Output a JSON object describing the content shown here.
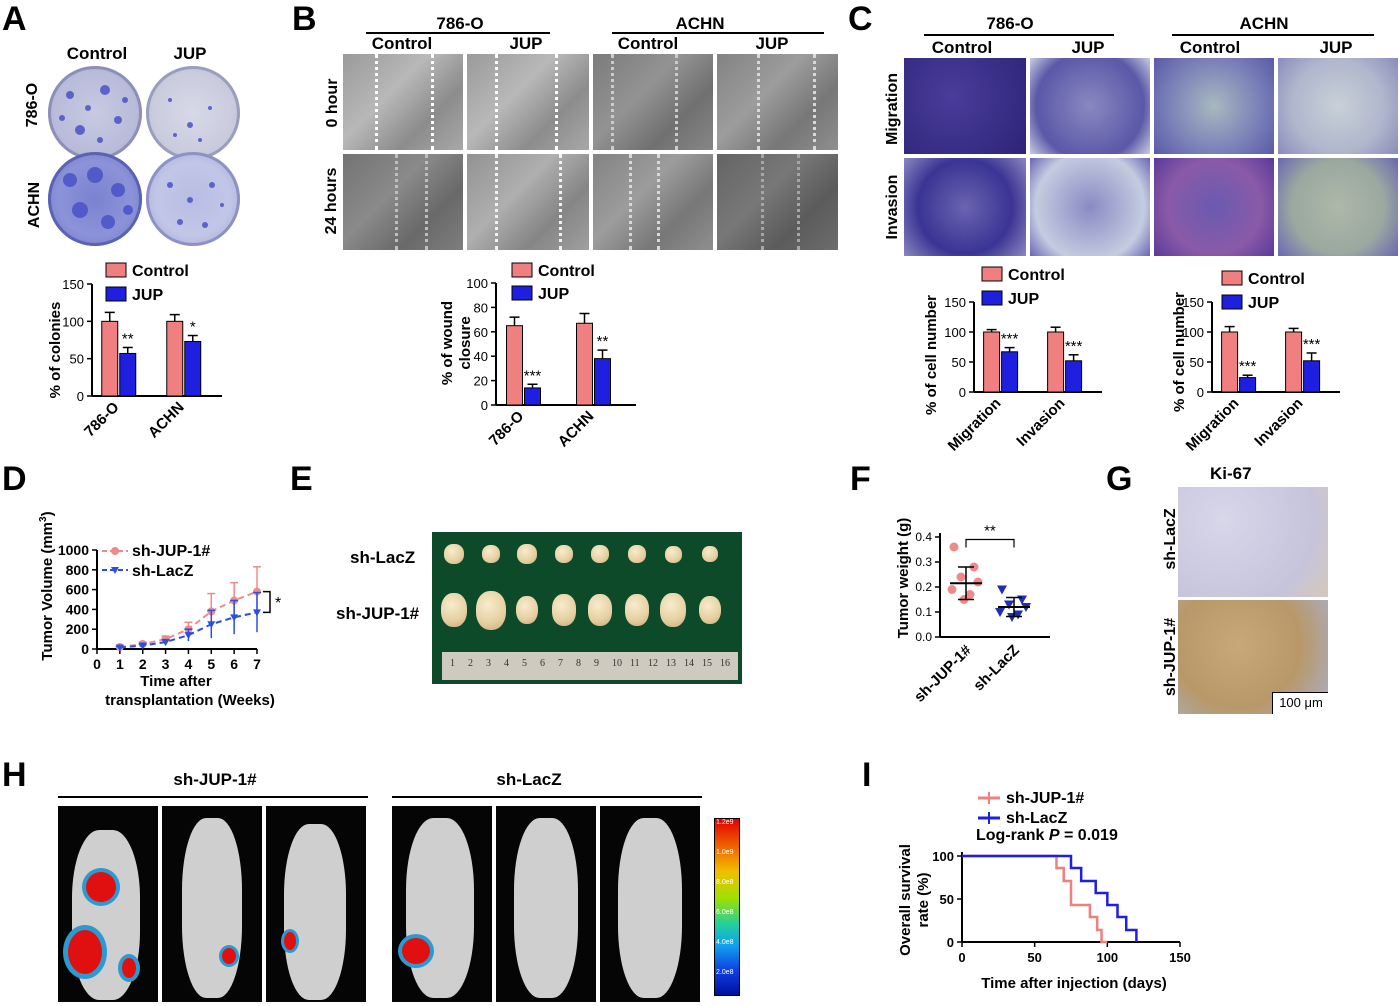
{
  "panels": {
    "A": {
      "label": "A",
      "col_headers": [
        "Control",
        "JUP"
      ],
      "row_labels": [
        "786-O",
        "ACHN"
      ],
      "legend": [
        "Control",
        "JUP"
      ],
      "ylabel": "% of colonies",
      "yticks": [
        "0",
        "50",
        "100",
        "150"
      ],
      "categories": [
        "786-O",
        "ACHN"
      ],
      "sig": [
        "**",
        "*"
      ]
    },
    "B": {
      "label": "B",
      "group_headers": [
        "786-O",
        "ACHN"
      ],
      "col_headers": [
        "Control",
        "JUP",
        "Control",
        "JUP"
      ],
      "row_labels": [
        "0 hour",
        "24 hours"
      ],
      "legend": [
        "Control",
        "JUP"
      ],
      "ylabel_lines": [
        "% of wound",
        "closure"
      ],
      "yticks": [
        "0",
        "20",
        "40",
        "60",
        "80",
        "100"
      ],
      "categories": [
        "786-O",
        "ACHN"
      ],
      "sig": [
        "***",
        "**"
      ]
    },
    "C": {
      "label": "C",
      "group_headers": [
        "786-O",
        "ACHN"
      ],
      "col_headers": [
        "Control",
        "JUP",
        "Control",
        "JUP"
      ],
      "row_labels": [
        "Migration",
        "Invasion"
      ],
      "legend": [
        "Control",
        "JUP"
      ],
      "ylabel": "% of cell number",
      "yticks": [
        "0",
        "50",
        "100",
        "150"
      ],
      "categories": [
        "Migration",
        "Invasion"
      ],
      "sig_left": [
        "***",
        "***"
      ],
      "sig_right": [
        "***",
        "***"
      ]
    },
    "D": {
      "label": "D",
      "ylabel": "Tumor Volume (mm",
      "ylabel_sup": "3",
      "ylabel_end": ")",
      "xlabel_lines": [
        "Time after",
        "transplantation (Weeks)"
      ],
      "yticks": [
        "0",
        "200",
        "400",
        "600",
        "800",
        "1000"
      ],
      "xticks": [
        "0",
        "1",
        "2",
        "3",
        "4",
        "5",
        "6",
        "7"
      ],
      "legend": [
        "sh-JUP-1#",
        "sh-LacZ"
      ],
      "sig": "*"
    },
    "E": {
      "label": "E",
      "row_labels": [
        "sh-LacZ",
        "sh-JUP-1#"
      ],
      "ruler_ticks": [
        "1",
        "2",
        "3",
        "4",
        "5",
        "6",
        "7",
        "8",
        "9",
        "10",
        "11",
        "12",
        "13",
        "14",
        "15",
        "16"
      ]
    },
    "F": {
      "label": "F",
      "ylabel": "Tumor weight (g)",
      "yticks": [
        "0.0",
        "0.1",
        "0.2",
        "0.3",
        "0.4"
      ],
      "categories": [
        "sh-JUP-1#",
        "sh-LacZ"
      ],
      "sig": "**"
    },
    "G": {
      "label": "G",
      "title": "Ki-67",
      "row_labels": [
        "sh-LacZ",
        "sh-JUP-1#"
      ],
      "scale_bar": "100 μm"
    },
    "H": {
      "label": "H",
      "group_headers": [
        "sh-JUP-1#",
        "sh-LacZ"
      ],
      "colorbar_ticks": [
        "1.2e9",
        "1.0e9",
        "8.0e8",
        "6.0e8",
        "4.0e8",
        "2.0e8"
      ]
    },
    "I": {
      "label": "I",
      "legend": [
        "sh-JUP-1#",
        "sh-LacZ"
      ],
      "logrank_prefix": "Log-rank ",
      "logrank_p": "P",
      "logrank_value": " = 0.019",
      "ylabel_lines": [
        "Overall survival",
        "rate (%)"
      ],
      "xlabel": "Time after injection (days)",
      "yticks": [
        "0",
        "50",
        "100"
      ],
      "xticks": [
        "0",
        "50",
        "100",
        "150"
      ]
    }
  },
  "colors": {
    "control": "#f07f7f",
    "jup": "#1f1fe0",
    "pink": "#f08a8a",
    "navy": "#1f2fb0",
    "tumor_bg": "#0d4a2a"
  },
  "chart_data": [
    {
      "panel": "A",
      "type": "bar",
      "categories": [
        "786-O",
        "ACHN"
      ],
      "series": [
        {
          "name": "Control",
          "values": [
            100,
            100
          ],
          "errors": [
            12,
            9
          ]
        },
        {
          "name": "JUP",
          "values": [
            57,
            73
          ],
          "errors": [
            8,
            8
          ]
        }
      ],
      "ylabel": "% of colonies",
      "ylim": [
        0,
        150
      ]
    },
    {
      "panel": "B",
      "type": "bar",
      "categories": [
        "786-O",
        "ACHN"
      ],
      "series": [
        {
          "name": "Control",
          "values": [
            65,
            67
          ],
          "errors": [
            7,
            8
          ]
        },
        {
          "name": "JUP",
          "values": [
            14,
            38
          ],
          "errors": [
            3,
            7
          ]
        }
      ],
      "ylabel": "% of wound closure",
      "ylim": [
        0,
        100
      ]
    },
    {
      "panel": "C-786-O",
      "type": "bar",
      "categories": [
        "Migration",
        "Invasion"
      ],
      "series": [
        {
          "name": "Control",
          "values": [
            100,
            100
          ],
          "errors": [
            4,
            8
          ]
        },
        {
          "name": "JUP",
          "values": [
            67,
            52
          ],
          "errors": [
            7,
            10
          ]
        }
      ],
      "ylabel": "% of cell number",
      "ylim": [
        0,
        150
      ]
    },
    {
      "panel": "C-ACHN",
      "type": "bar",
      "categories": [
        "Migration",
        "Invasion"
      ],
      "series": [
        {
          "name": "Control",
          "values": [
            100,
            100
          ],
          "errors": [
            9,
            6
          ]
        },
        {
          "name": "JUP",
          "values": [
            24,
            52
          ],
          "errors": [
            4,
            13
          ]
        }
      ],
      "ylabel": "% of cell number",
      "ylim": [
        0,
        150
      ]
    },
    {
      "panel": "D",
      "type": "line",
      "x": [
        1,
        2,
        3,
        4,
        5,
        6,
        7
      ],
      "series": [
        {
          "name": "sh-JUP-1#",
          "values": [
            20,
            50,
            100,
            200,
            380,
            490,
            580
          ],
          "errors": [
            10,
            20,
            30,
            70,
            180,
            180,
            250
          ]
        },
        {
          "name": "sh-LacZ",
          "values": [
            15,
            35,
            70,
            140,
            250,
            320,
            370
          ],
          "errors": [
            10,
            15,
            25,
            60,
            140,
            170,
            200
          ]
        }
      ],
      "ylabel": "Tumor Volume (mm3)",
      "xlabel": "Time after transplantation (Weeks)",
      "xlim": [
        0,
        7
      ],
      "ylim": [
        0,
        1000
      ]
    },
    {
      "panel": "F",
      "type": "scatter",
      "categories": [
        "sh-JUP-1#",
        "sh-LacZ"
      ],
      "series": [
        {
          "name": "sh-JUP-1#",
          "values": [
            0.36,
            0.28,
            0.24,
            0.22,
            0.19,
            0.17,
            0.15
          ],
          "mean": 0.215,
          "sd": 0.065
        },
        {
          "name": "sh-LacZ",
          "values": [
            0.19,
            0.15,
            0.13,
            0.12,
            0.1,
            0.09,
            0.08
          ],
          "mean": 0.12,
          "sd": 0.038
        }
      ],
      "ylabel": "Tumor weight (g)",
      "ylim": [
        0,
        0.4
      ]
    },
    {
      "panel": "I",
      "type": "line",
      "series": [
        {
          "name": "sh-JUP-1#",
          "steps": [
            [
              0,
              100
            ],
            [
              65,
              100
            ],
            [
              65,
              86
            ],
            [
              70,
              86
            ],
            [
              70,
              71
            ],
            [
              75,
              71
            ],
            [
              75,
              43
            ],
            [
              88,
              43
            ],
            [
              88,
              29
            ],
            [
              93,
              29
            ],
            [
              93,
              14
            ],
            [
              96,
              14
            ],
            [
              96,
              0
            ],
            [
              100,
              0
            ]
          ]
        },
        {
          "name": "sh-LacZ",
          "steps": [
            [
              0,
              100
            ],
            [
              75,
              100
            ],
            [
              75,
              86
            ],
            [
              82,
              86
            ],
            [
              82,
              71
            ],
            [
              92,
              71
            ],
            [
              92,
              57
            ],
            [
              100,
              57
            ],
            [
              100,
              43
            ],
            [
              107,
              43
            ],
            [
              107,
              29
            ],
            [
              113,
              29
            ],
            [
              113,
              14
            ],
            [
              120,
              14
            ],
            [
              120,
              0
            ]
          ]
        }
      ],
      "ylabel": "Overall survival rate (%)",
      "xlabel": "Time after injection (days)",
      "xlim": [
        0,
        150
      ],
      "ylim": [
        0,
        100
      ]
    }
  ]
}
